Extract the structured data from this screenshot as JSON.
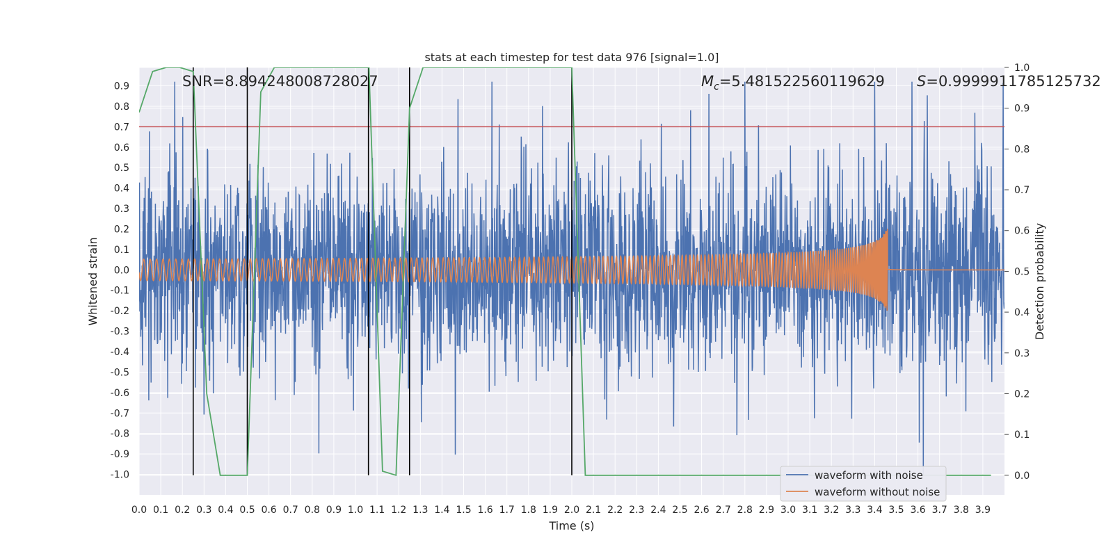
{
  "chart_data": {
    "type": "line",
    "title": "stats at each timestep for test data 976 [signal=1.0]",
    "xlabel": "Time (s)",
    "ylabel": "Whitened strain",
    "y2label": "Detection probability",
    "xlim": [
      0.0,
      4.0
    ],
    "ylim": [
      -1.1,
      0.99
    ],
    "y2lim": [
      -0.048,
      1.0
    ],
    "xticks": [
      "0.0",
      "0.1",
      "0.2",
      "0.3",
      "0.4",
      "0.5",
      "0.6",
      "0.7",
      "0.8",
      "0.9",
      "1.0",
      "1.1",
      "1.2",
      "1.3",
      "1.4",
      "1.5",
      "1.6",
      "1.7",
      "1.8",
      "1.9",
      "2.0",
      "2.1",
      "2.2",
      "2.3",
      "2.4",
      "2.5",
      "2.6",
      "2.7",
      "2.8",
      "2.9",
      "3.0",
      "3.1",
      "3.2",
      "3.3",
      "3.4",
      "3.5",
      "3.6",
      "3.7",
      "3.8",
      "3.9"
    ],
    "yticks": [
      "0.9",
      "0.8",
      "0.7",
      "0.6",
      "0.5",
      "0.4",
      "0.3",
      "0.2",
      "0.1",
      "0.0",
      "-0.1",
      "-0.2",
      "-0.3",
      "-0.4",
      "-0.5",
      "-0.6",
      "-0.7",
      "-0.8",
      "-0.9",
      "-1.0"
    ],
    "y2ticks": [
      "1.0",
      "0.9",
      "0.8",
      "0.7",
      "0.6",
      "0.5",
      "0.4",
      "0.3",
      "0.2",
      "0.1",
      "0.0"
    ],
    "annotations": {
      "snr": "SNR=8.894248008728027",
      "mc_symbol": "M",
      "mc_sub": "c",
      "mc_value": "=5.481522560119629",
      "s_symbol": "S",
      "s_value": "=0.9999911785125732"
    },
    "threshold": {
      "value": 0.7,
      "color": "#c44e52"
    },
    "vlines": [
      0.25,
      0.5,
      1.06,
      1.25,
      2.0
    ],
    "series": [
      {
        "name": "waveform with noise",
        "color": "#4c72b0",
        "axis": "left",
        "note": "noisy whitened strain, roughly -1.0 to 0.9"
      },
      {
        "name": "waveform without noise",
        "color": "#dd8452",
        "axis": "left",
        "merger_time": 3.46,
        "peak": 0.24
      },
      {
        "name": "",
        "color": "#55a868",
        "axis": "right",
        "x": [
          0.0,
          0.0625,
          0.125,
          0.1875,
          0.25,
          0.3125,
          0.375,
          0.4375,
          0.5,
          0.5625,
          0.625,
          0.6875,
          0.75,
          0.8125,
          0.875,
          0.9375,
          1.0,
          1.0625,
          1.125,
          1.1875,
          1.25,
          1.3125,
          1.375,
          1.4375,
          1.5,
          1.5625,
          1.625,
          1.6875,
          1.75,
          1.8125,
          1.875,
          1.9375,
          2.0,
          2.0625,
          2.125,
          2.1875,
          2.25,
          2.3125,
          2.375,
          2.4375,
          2.5,
          2.5625,
          2.625,
          2.6875,
          2.75,
          2.8125,
          2.875,
          2.9375,
          3.0,
          3.0625,
          3.125,
          3.1875,
          3.25,
          3.3125,
          3.375,
          3.4375,
          3.5,
          3.5625,
          3.625,
          3.6875,
          3.75,
          3.8125,
          3.875,
          3.9375
        ],
        "values": [
          0.89,
          0.99,
          1.0,
          1.0,
          0.99,
          0.2,
          0.0,
          0.0,
          0.0,
          0.94,
          1.0,
          1.0,
          1.0,
          1.0,
          1.0,
          1.0,
          1.0,
          1.0,
          0.01,
          0.0,
          0.9,
          1.0,
          1.0,
          1.0,
          1.0,
          1.0,
          1.0,
          1.0,
          1.0,
          1.0,
          1.0,
          1.0,
          1.0,
          0.0,
          0.0,
          0.0,
          0.0,
          0.0,
          0.0,
          0.0,
          0.0,
          0.0,
          0.0,
          0.0,
          0.0,
          0.0,
          0.0,
          0.0,
          0.0,
          0.0,
          0.0,
          0.0,
          0.0,
          0.0,
          0.0,
          0.0,
          0.0,
          0.0,
          0.0,
          0.0,
          0.0,
          0.0,
          0.0,
          0.0
        ]
      }
    ],
    "legend": {
      "placement": "lower-right",
      "entries": [
        "waveform with noise",
        "waveform without noise"
      ]
    },
    "grid": true,
    "style": {
      "background": "#eaeaf2",
      "grid_color": "#ffffff"
    }
  }
}
